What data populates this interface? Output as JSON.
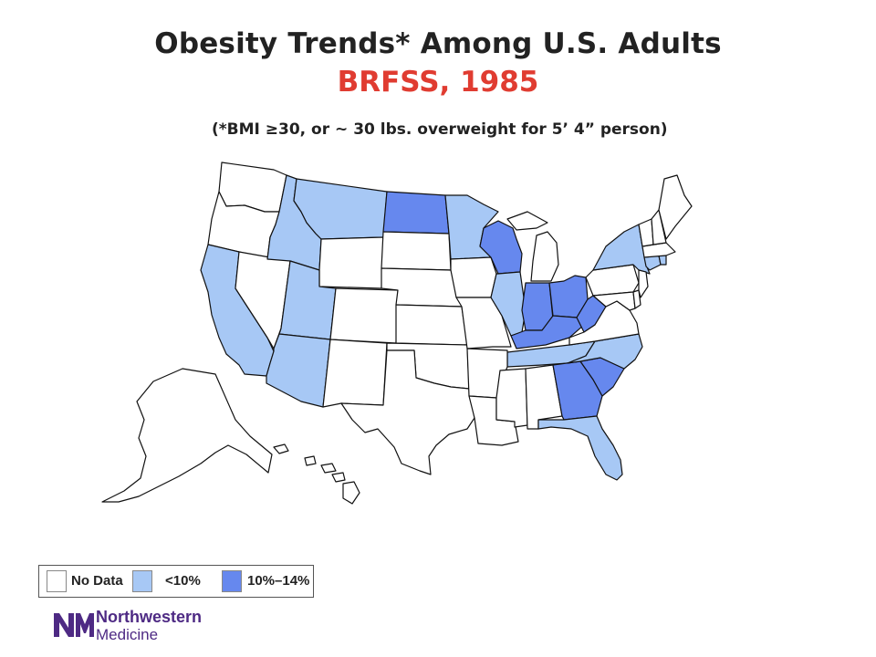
{
  "title": "Obesity Trends* Among U.S. Adults",
  "subtitle": "BRFSS, 1985",
  "footnote": "(*BMI ≥30, or ~ 30 lbs. overweight for 5’ 4” person)",
  "colors": {
    "no_data": "#ffffff",
    "lt10": "#a7c8f5",
    "10to14": "#6688ee",
    "subtitle": "#e03c31",
    "border": "#111111",
    "brand": "#4e2a84"
  },
  "legend": {
    "items": [
      {
        "label": "No Data",
        "category": "no_data"
      },
      {
        "label": "<10%",
        "category": "lt10"
      },
      {
        "label": "10%–14%",
        "category": "10to14"
      }
    ]
  },
  "state_categories": {
    "10to14": [
      "North Dakota",
      "Wisconsin",
      "Indiana",
      "Ohio",
      "Kentucky",
      "West Virginia",
      "Georgia",
      "South Carolina"
    ],
    "lt10": [
      "Montana",
      "Idaho",
      "California",
      "Utah",
      "Arizona",
      "Minnesota",
      "Illinois",
      "Tennessee",
      "North Carolina",
      "Florida",
      "New York",
      "Connecticut",
      "Rhode Island"
    ]
  },
  "logo": {
    "line1": "Northwestern",
    "line2": "Medicine",
    "mark": "NM"
  }
}
